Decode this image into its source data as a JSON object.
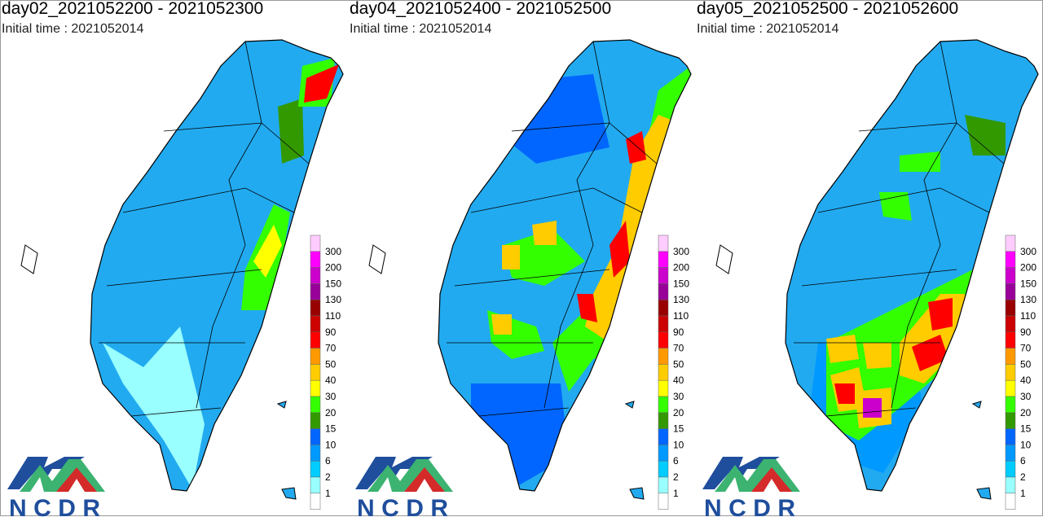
{
  "panels": [
    {
      "title": "day02_2021052200 - 2021052300",
      "initial_time": "Initial time : 2021052014"
    },
    {
      "title": "day04_2021052400 - 2021052500",
      "initial_time": "Initial time : 2021052014"
    },
    {
      "title": "day05_2021052500 - 2021052600",
      "initial_time": "Initial time : 2021052014"
    }
  ],
  "legend": {
    "labels": [
      "300",
      "200",
      "150",
      "130",
      "110",
      "90",
      "70",
      "50",
      "40",
      "30",
      "20",
      "15",
      "10",
      "6",
      "2",
      "1"
    ],
    "colors": [
      "#ffccff",
      "#ff00ff",
      "#cc00cc",
      "#990099",
      "#990000",
      "#cc0000",
      "#ff0000",
      "#ff9900",
      "#ffcc00",
      "#ffff00",
      "#33ff00",
      "#339900",
      "#0066ff",
      "#0099ff",
      "#00ccff",
      "#99ffff",
      "#ffffff"
    ]
  },
  "logo": {
    "text": "NCDR",
    "colors": {
      "blue": "#1f4e9c",
      "green": "#3cb371",
      "red": "#d42a2a"
    }
  }
}
